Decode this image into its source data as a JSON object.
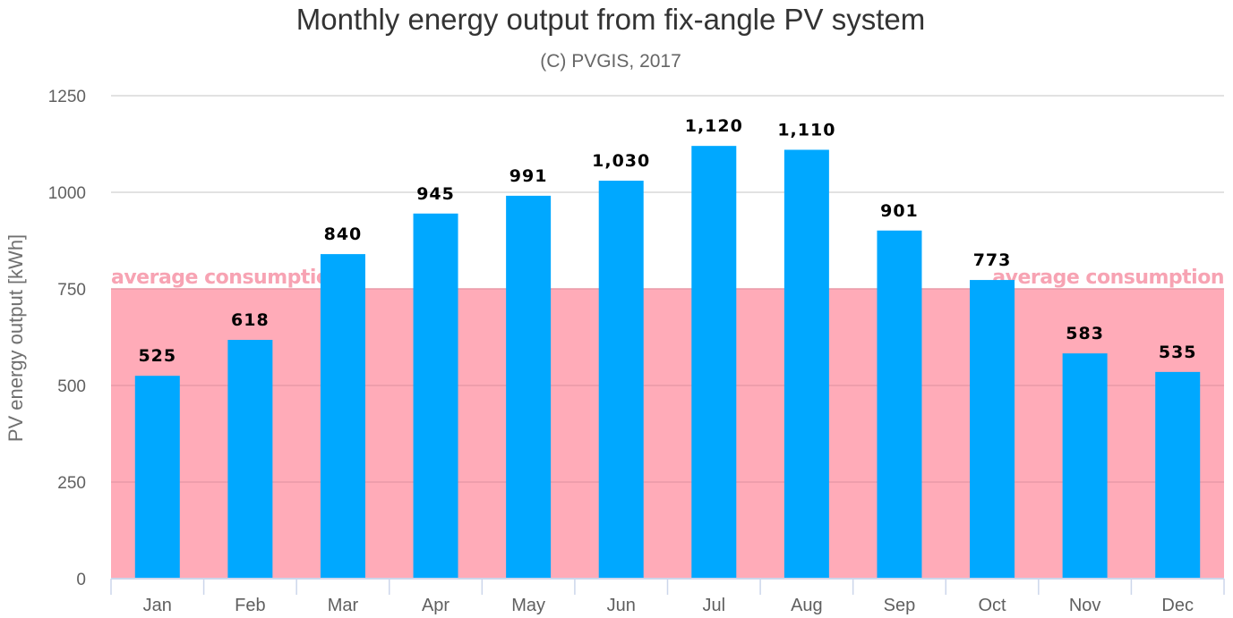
{
  "chart_data": {
    "type": "bar",
    "title": "Monthly energy output from fix-angle PV system",
    "subtitle": "(C) PVGIS, 2017",
    "ylabel": "PV energy output [kWh]",
    "xlabel": "",
    "categories": [
      "Jan",
      "Feb",
      "Mar",
      "Apr",
      "May",
      "Jun",
      "Jul",
      "Aug",
      "Sep",
      "Oct",
      "Nov",
      "Dec"
    ],
    "values": [
      525,
      618,
      840,
      945,
      991,
      1030,
      1120,
      1110,
      901,
      773,
      583,
      535
    ],
    "data_labels": [
      "525",
      "618",
      "840",
      "945",
      "991",
      "1,030",
      "1,120",
      "1,110",
      "901",
      "773",
      "583",
      "535"
    ],
    "ylim": [
      0,
      1250
    ],
    "yticks": [
      0,
      250,
      500,
      750,
      1000,
      1250
    ],
    "grid": true,
    "legend": "none",
    "band": {
      "from": 0,
      "to": 750,
      "label": "average consumption",
      "color": "#ffabb8",
      "label_color": "#f7a3b3"
    },
    "bar_color": "#00a8ff",
    "gridline_color": "#d9d9d9"
  }
}
